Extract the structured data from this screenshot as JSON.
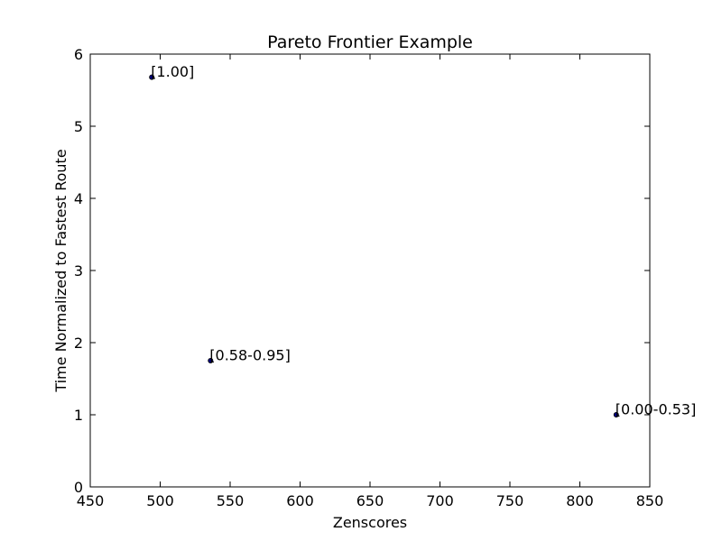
{
  "chart_data": {
    "type": "scatter",
    "title": "Pareto Frontier Example",
    "xlabel": "Zenscores",
    "ylabel": "Time Normalized to Fastest Route",
    "xlim": [
      450,
      850
    ],
    "ylim": [
      0,
      6
    ],
    "xticks": [
      450,
      500,
      550,
      600,
      650,
      700,
      750,
      800,
      850
    ],
    "yticks": [
      0,
      1,
      2,
      3,
      4,
      5,
      6
    ],
    "grid": false,
    "points": [
      {
        "x": 494,
        "y": 5.68,
        "label": "[1.00]"
      },
      {
        "x": 536,
        "y": 1.75,
        "label": "[0.58-0.95]"
      },
      {
        "x": 826,
        "y": 1.0,
        "label": "[0.00-0.53]"
      }
    ],
    "marker_color": "#000080"
  }
}
